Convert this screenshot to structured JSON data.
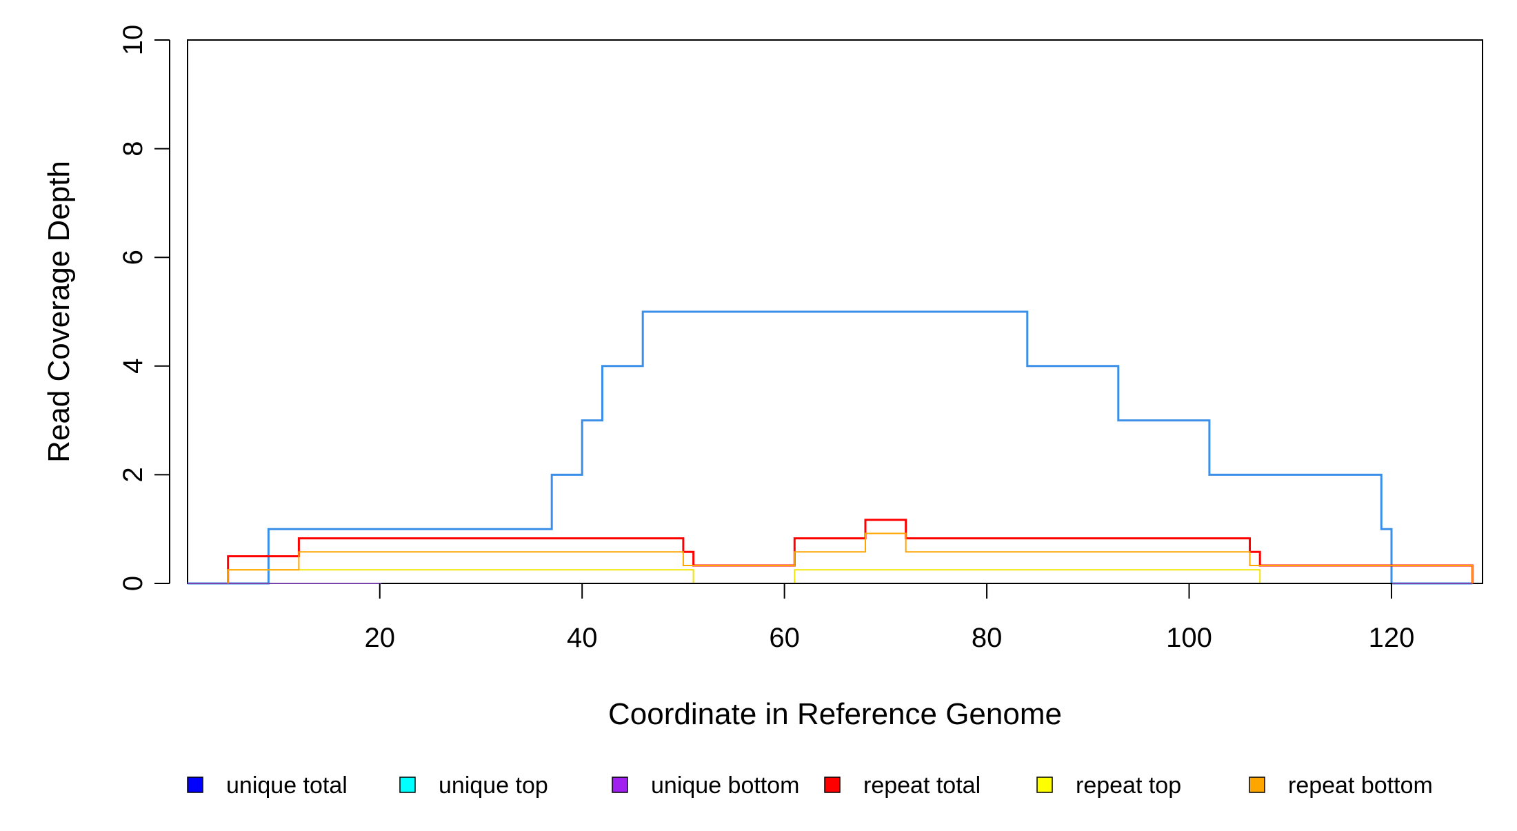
{
  "chart_data": {
    "type": "line",
    "title": "",
    "xlabel": "Coordinate in Reference Genome",
    "ylabel": "Read Coverage Depth",
    "xlim": [
      1,
      129
    ],
    "ylim": [
      0,
      10
    ],
    "x_ticks": [
      20,
      40,
      60,
      80,
      100,
      120
    ],
    "y_ticks": [
      0,
      2,
      4,
      6,
      8,
      10
    ],
    "grid": false,
    "legend_position": "bottom",
    "step": true,
    "series": [
      {
        "name": "unique total",
        "legend_color": "#0000FF",
        "line_color": "#3B8FE8",
        "points": [
          [
            1,
            0
          ],
          [
            9,
            0
          ],
          [
            9,
            1
          ],
          [
            37,
            1
          ],
          [
            37,
            2
          ],
          [
            40,
            2
          ],
          [
            40,
            3
          ],
          [
            42,
            3
          ],
          [
            42,
            4
          ],
          [
            46,
            4
          ],
          [
            46,
            5
          ],
          [
            84,
            5
          ],
          [
            84,
            4
          ],
          [
            93,
            4
          ],
          [
            93,
            3
          ],
          [
            102,
            3
          ],
          [
            102,
            2
          ],
          [
            119,
            2
          ],
          [
            119,
            1
          ],
          [
            120,
            1
          ],
          [
            120,
            0
          ],
          [
            128,
            0
          ]
        ]
      },
      {
        "name": "unique top",
        "legend_color": "#00FFFF",
        "line_color": "#00FFFF",
        "points": []
      },
      {
        "name": "unique bottom",
        "legend_color": "#A020F0",
        "line_color": "#7744AA",
        "points": [
          [
            1,
            0
          ],
          [
            128,
            0
          ]
        ]
      },
      {
        "name": "repeat total",
        "legend_color": "#FF0000",
        "line_color": "#FF0000",
        "points": [
          [
            5,
            0
          ],
          [
            5,
            0.5
          ],
          [
            12,
            0.5
          ],
          [
            12,
            0.83
          ],
          [
            50,
            0.83
          ],
          [
            50,
            0.58
          ],
          [
            51,
            0.58
          ],
          [
            51,
            0.33
          ],
          [
            61,
            0.33
          ],
          [
            61,
            0.83
          ],
          [
            68,
            0.83
          ],
          [
            68,
            1.17
          ],
          [
            72,
            1.17
          ],
          [
            72,
            0.83
          ],
          [
            106,
            0.83
          ],
          [
            106,
            0.58
          ],
          [
            107,
            0.58
          ],
          [
            107,
            0.33
          ],
          [
            128,
            0.33
          ],
          [
            128,
            0
          ]
        ]
      },
      {
        "name": "repeat top",
        "legend_color": "#FFFF00",
        "line_color": "#F2E600",
        "points": [
          [
            5,
            0
          ],
          [
            5,
            0.25
          ],
          [
            51,
            0.25
          ],
          [
            51,
            0
          ],
          [
            61,
            0
          ],
          [
            61,
            0.25
          ],
          [
            107,
            0.25
          ],
          [
            107,
            0
          ]
        ]
      },
      {
        "name": "repeat bottom",
        "legend_color": "#FFA500",
        "line_color": "#FFA500",
        "points": [
          [
            5,
            0
          ],
          [
            5,
            0.25
          ],
          [
            12,
            0.25
          ],
          [
            12,
            0.58
          ],
          [
            50,
            0.58
          ],
          [
            50,
            0.33
          ],
          [
            61,
            0.33
          ],
          [
            61,
            0.58
          ],
          [
            68,
            0.58
          ],
          [
            68,
            0.92
          ],
          [
            72,
            0.92
          ],
          [
            72,
            0.58
          ],
          [
            106,
            0.58
          ],
          [
            106,
            0.33
          ],
          [
            128,
            0.33
          ],
          [
            128,
            0
          ]
        ]
      }
    ]
  }
}
